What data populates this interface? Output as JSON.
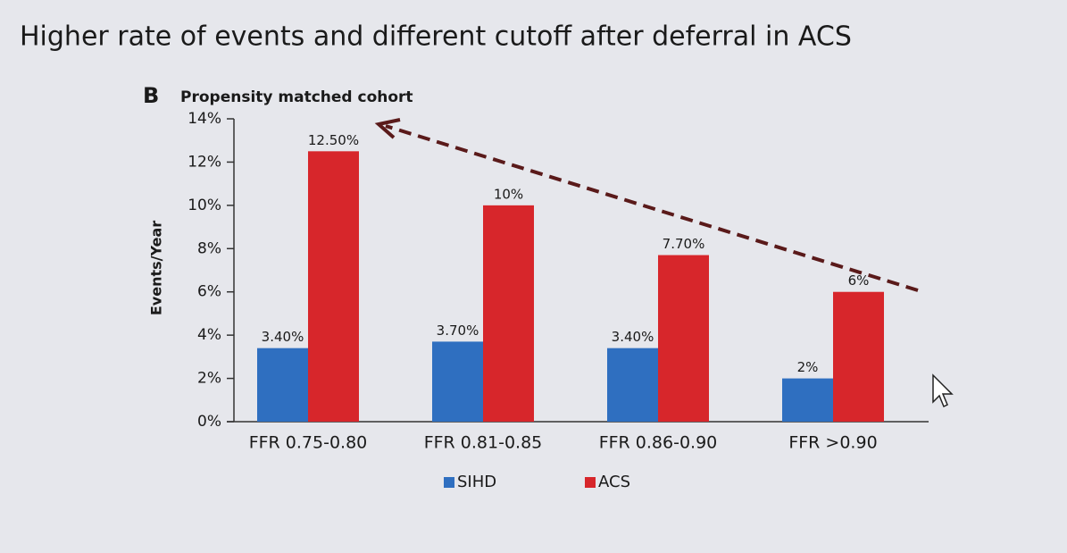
{
  "title": "Higher rate of events and different cutoff after deferral in ACS",
  "chart_data": {
    "type": "bar",
    "panel": "B",
    "title": "Propensity matched cohort",
    "ylabel": "Events/Year",
    "categories": [
      "FFR 0.75-0.80",
      "FFR 0.81-0.85",
      "FFR 0.86-0.90",
      "FFR >0.90"
    ],
    "series": [
      {
        "name": "SIHD",
        "color": "#2f6fc0",
        "values": [
          3.4,
          3.7,
          3.4,
          2
        ],
        "value_labels": [
          "3.40%",
          "3.70%",
          "3.40%",
          "2%"
        ]
      },
      {
        "name": "ACS",
        "color": "#d7262b",
        "values": [
          12.5,
          10,
          7.7,
          6
        ],
        "value_labels": [
          "12.50%",
          "10%",
          "7.70%",
          "6%"
        ]
      }
    ],
    "ylim": [
      0,
      14
    ],
    "yticks": [
      {
        "value": 0,
        "label": "0%"
      },
      {
        "value": 2,
        "label": "2%"
      },
      {
        "value": 4,
        "label": "4%"
      },
      {
        "value": 6,
        "label": "6%"
      },
      {
        "value": 8,
        "label": "8%"
      },
      {
        "value": 10,
        "label": "10%"
      },
      {
        "value": 12,
        "label": "12%"
      },
      {
        "value": 14,
        "label": "14%"
      }
    ]
  }
}
